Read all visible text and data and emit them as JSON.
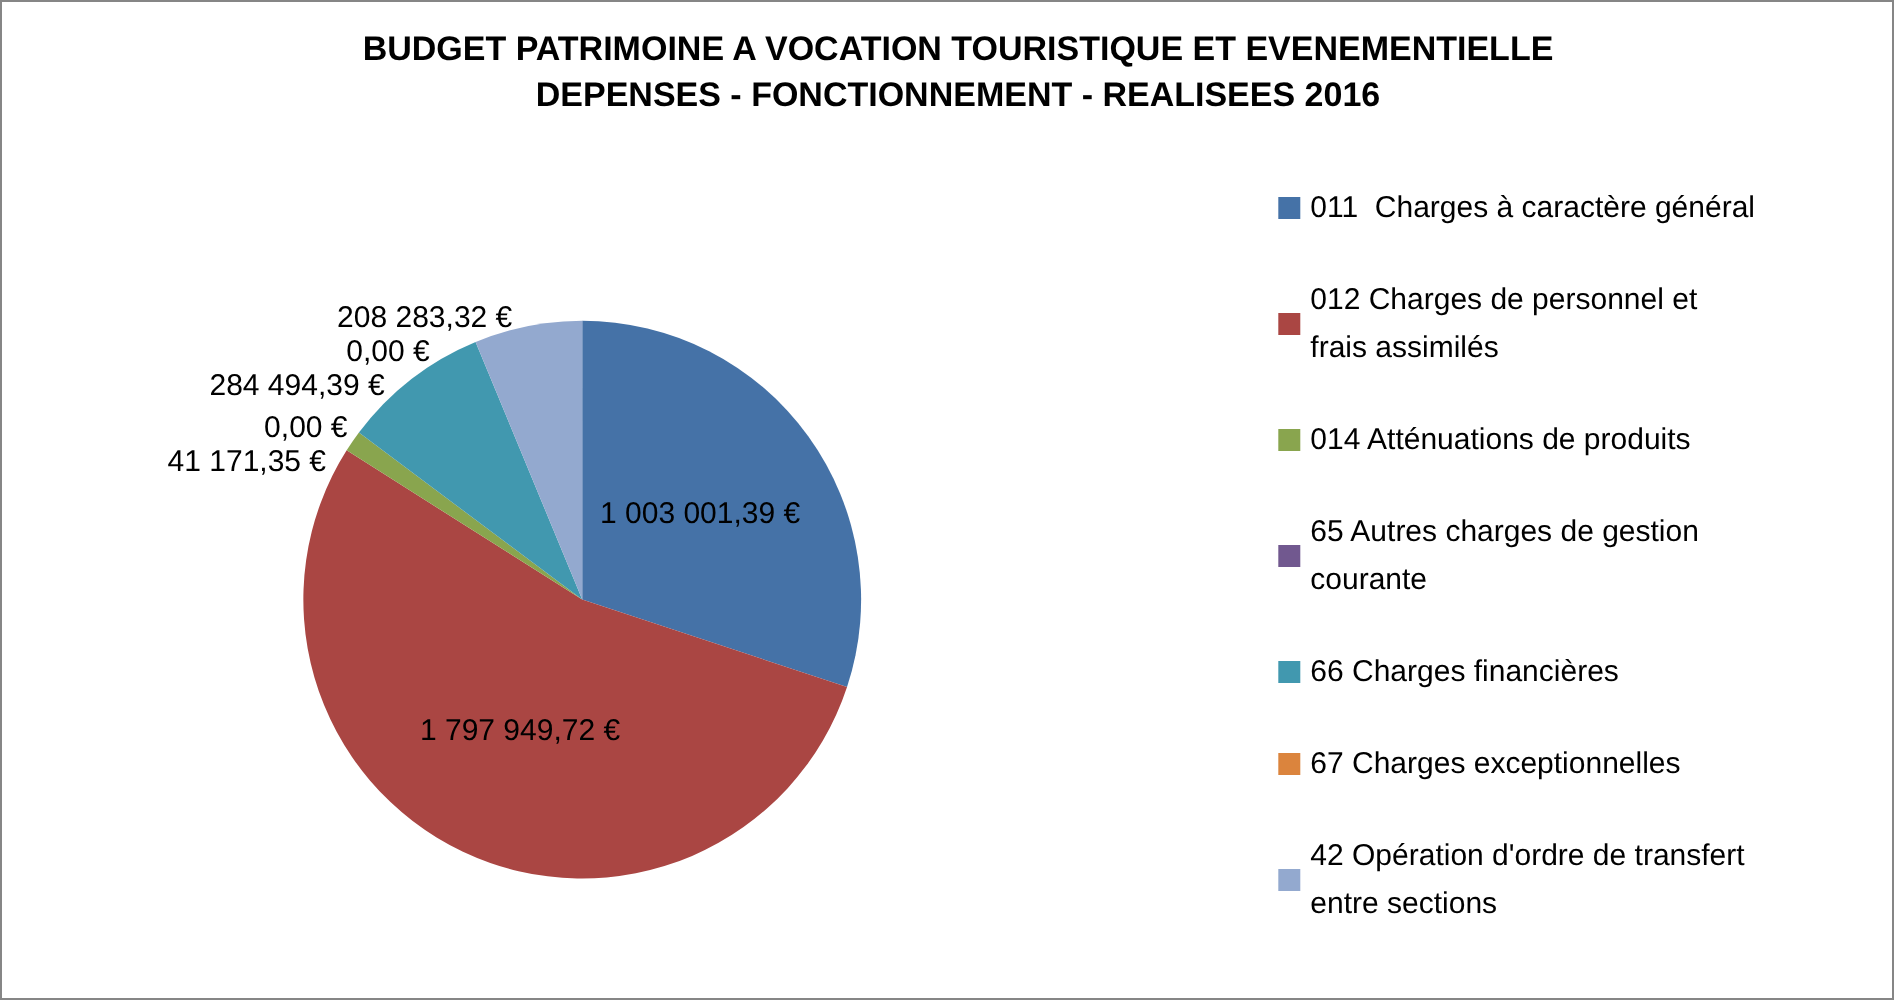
{
  "chart_data": {
    "type": "pie",
    "title": "BUDGET PATRIMOINE A VOCATION TOURISTIQUE ET EVENEMENTIELLE",
    "subtitle": "DEPENSES - FONCTIONNEMENT - REALISEES 2016",
    "categories": [
      "011  Charges à caractère général",
      "012 Charges de personnel et frais assimilés",
      "014 Atténuations de produits",
      "65 Autres charges de gestion courante",
      "66 Charges financières",
      "67 Charges exceptionnelles",
      "42 Opération d'ordre de transfert entre sections"
    ],
    "values": [
      1003001.39,
      1797949.72,
      41171.35,
      0,
      284494.39,
      0,
      208283.32
    ],
    "colors": [
      "#4572a7",
      "#aa4643",
      "#89a54e",
      "#71588f",
      "#4198af",
      "#db843d",
      "#93a9cf"
    ],
    "value_labels": [
      "1 003 001,39 €",
      "1 797 949,72 €",
      "41 171,35 €",
      "0,00 €",
      "284 494,39 €",
      "0,00 €",
      "208 283,32 €"
    ],
    "legend": "right"
  }
}
